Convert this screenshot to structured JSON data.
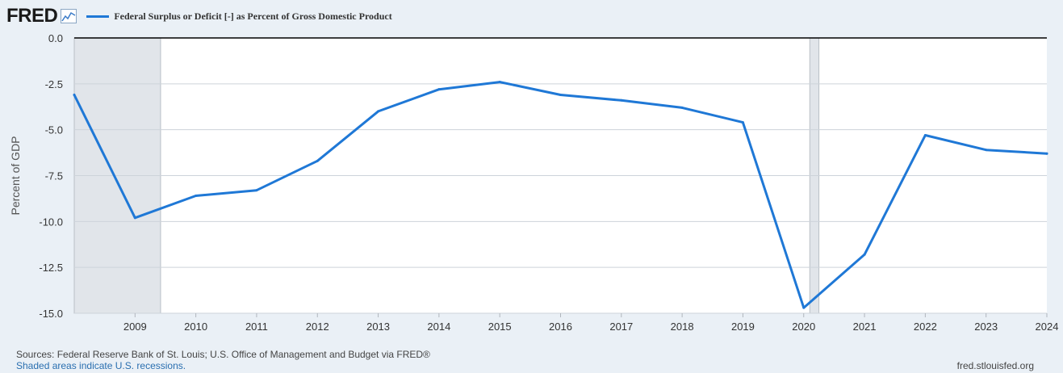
{
  "header": {
    "logo": "FRED",
    "logo_icon": "line-chart-icon",
    "legend_label": "Federal Surplus or Deficit [-] as Percent of Gross Domestic Product"
  },
  "footer": {
    "sources": "Sources: Federal Reserve Bank of St. Louis; U.S. Office of Management and Budget via FRED®",
    "recession_note": "Shaded areas indicate U.S. recessions.",
    "site": "fred.stlouisfed.org"
  },
  "chart_data": {
    "type": "line",
    "ylabel": "Percent of GDP",
    "xlabel": "",
    "title": "",
    "x_ticks": [
      "2009",
      "2010",
      "2011",
      "2012",
      "2013",
      "2014",
      "2015",
      "2016",
      "2017",
      "2018",
      "2019",
      "2020",
      "2021",
      "2022",
      "2023",
      "2024"
    ],
    "y_ticks": [
      0.0,
      -2.5,
      -5.0,
      -7.5,
      -10.0,
      -12.5,
      -15.0
    ],
    "y_tick_labels": [
      "0.0",
      "-2.5",
      "-5.0",
      "-7.5",
      "-10.0",
      "-12.5",
      "-15.0"
    ],
    "xlim": [
      2008,
      2024
    ],
    "ylim": [
      -15,
      0
    ],
    "grid": "horizontal",
    "series": [
      {
        "name": "Federal Surplus or Deficit [-] as Percent of Gross Domestic Product",
        "color": "#1f78d6",
        "x": [
          2008,
          2009,
          2010,
          2011,
          2012,
          2013,
          2014,
          2015,
          2016,
          2017,
          2018,
          2019,
          2020,
          2021,
          2022,
          2023,
          2024
        ],
        "values": [
          -3.1,
          -9.8,
          -8.6,
          -8.3,
          -6.7,
          -4.0,
          -2.8,
          -2.4,
          -3.1,
          -3.4,
          -3.8,
          -4.6,
          -14.7,
          -11.8,
          -5.3,
          -6.1,
          -6.3
        ]
      }
    ],
    "recessions": [
      {
        "start": 2008.0,
        "end": 2009.42
      },
      {
        "start": 2020.1,
        "end": 2020.25
      }
    ],
    "colors": {
      "line": "#1f78d6",
      "recession": "#e1e5ea",
      "grid": "#cdd3da",
      "axis_text": "#333333"
    }
  }
}
